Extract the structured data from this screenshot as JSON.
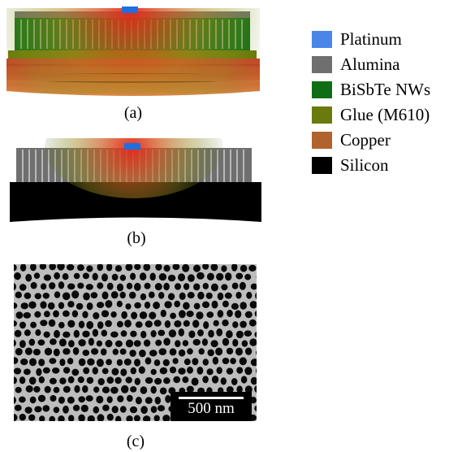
{
  "captions": {
    "a": "(a)",
    "b": "(b)",
    "c": "(c)"
  },
  "legend": [
    {
      "label": "Platinum",
      "color": "#4a86e8"
    },
    {
      "label": "Alumina",
      "color": "#6f6f6f"
    },
    {
      "label": "BiSbTe NWs",
      "color": "#0f6e15"
    },
    {
      "label": "Glue (M610)",
      "color": "#6b7a0c"
    },
    {
      "label": "Copper",
      "color": "#b0632c"
    },
    {
      "label": "Silicon",
      "color": "#000000"
    }
  ],
  "scale_bar": {
    "label": "500 nm"
  }
}
